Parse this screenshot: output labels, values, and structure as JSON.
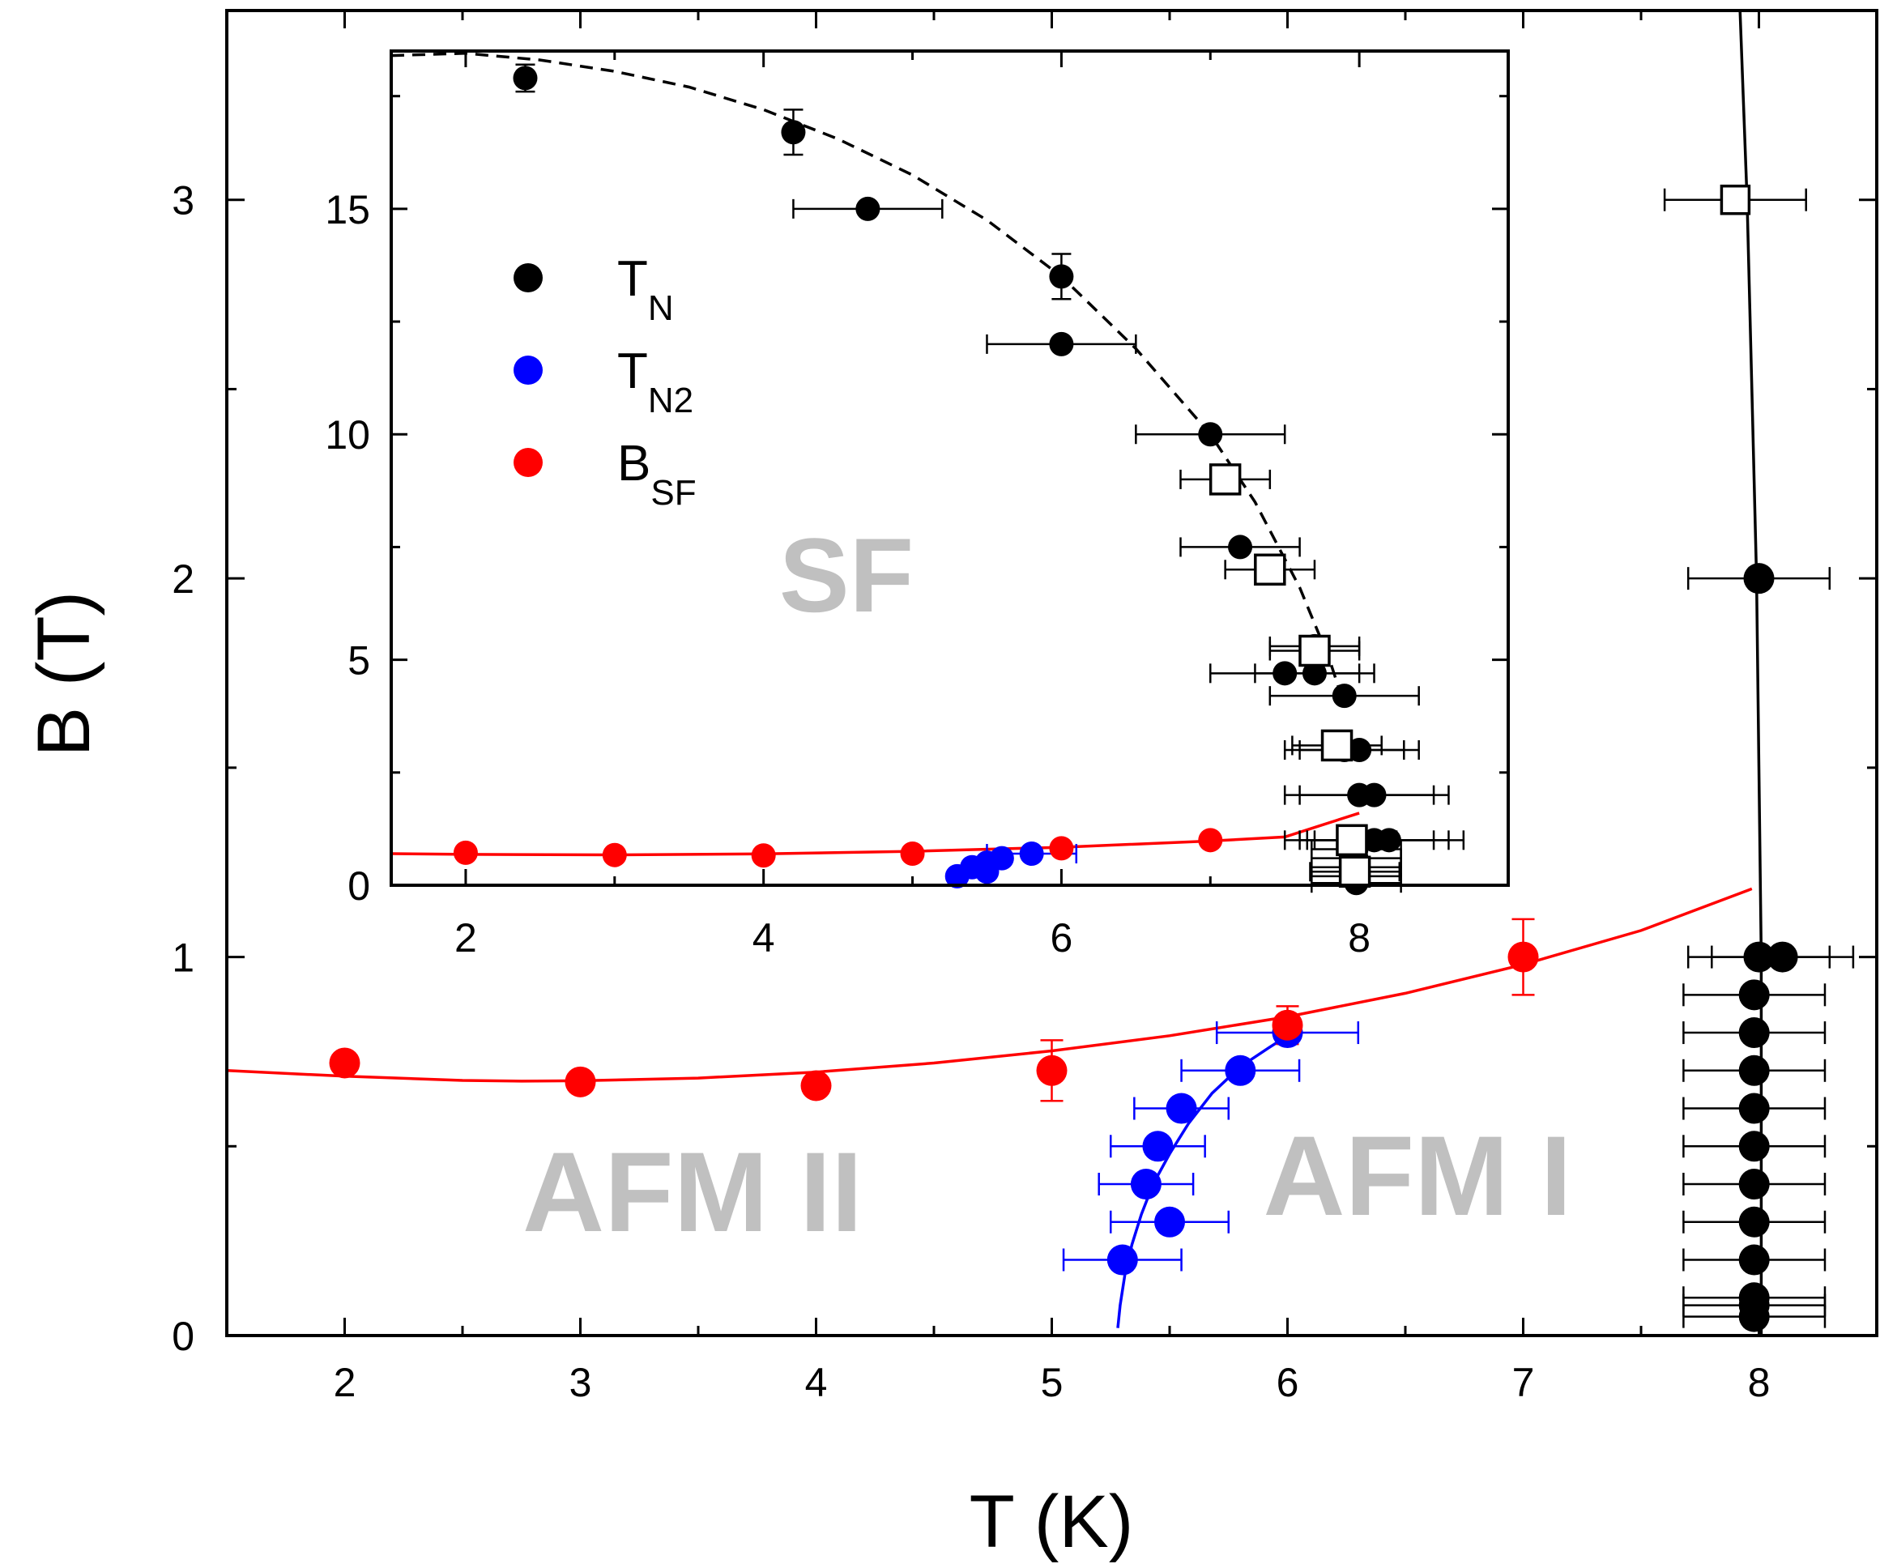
{
  "chart_data": [
    {
      "type": "scatter",
      "panel": "main",
      "xlabel": "T (K)",
      "ylabel": "B (T)",
      "xlim": [
        1.5,
        8.5
      ],
      "ylim": [
        0,
        3.5
      ],
      "xticks": [
        2,
        3,
        4,
        5,
        6,
        7,
        8
      ],
      "yticks": [
        0,
        1,
        2,
        3
      ],
      "region_labels": [
        "AFM II",
        "AFM I"
      ],
      "series": [
        {
          "id": "TN",
          "color": "#000000",
          "marker": "filled-circle",
          "points": [
            {
              "x": 8.0,
              "y": 2.0,
              "xerr": 0.3
            },
            {
              "x": 8.0,
              "y": 1.0,
              "xerr": 0.3
            },
            {
              "x": 8.1,
              "y": 1.0,
              "xerr": 0.3
            },
            {
              "x": 7.98,
              "y": 0.9,
              "xerr": 0.3
            },
            {
              "x": 7.98,
              "y": 0.8,
              "xerr": 0.3
            },
            {
              "x": 7.98,
              "y": 0.7,
              "xerr": 0.3
            },
            {
              "x": 7.98,
              "y": 0.6,
              "xerr": 0.3
            },
            {
              "x": 7.98,
              "y": 0.5,
              "xerr": 0.3
            },
            {
              "x": 7.98,
              "y": 0.4,
              "xerr": 0.3
            },
            {
              "x": 7.98,
              "y": 0.3,
              "xerr": 0.3
            },
            {
              "x": 7.98,
              "y": 0.2,
              "xerr": 0.3
            },
            {
              "x": 7.98,
              "y": 0.1,
              "xerr": 0.3
            },
            {
              "x": 7.98,
              "y": 0.08,
              "xerr": 0.3
            },
            {
              "x": 7.98,
              "y": 0.05,
              "xerr": 0.3
            }
          ]
        },
        {
          "id": "TN_open",
          "color": "#000000",
          "marker": "open-square",
          "points": [
            {
              "x": 7.9,
              "y": 3.0,
              "xerr": 0.3
            }
          ]
        },
        {
          "id": "TN2",
          "color": "#0000ff",
          "marker": "filled-circle",
          "points": [
            {
              "x": 5.3,
              "y": 0.2,
              "xerr": 0.25
            },
            {
              "x": 5.5,
              "y": 0.3,
              "xerr": 0.25
            },
            {
              "x": 5.4,
              "y": 0.4,
              "xerr": 0.2
            },
            {
              "x": 5.45,
              "y": 0.5,
              "xerr": 0.2
            },
            {
              "x": 5.55,
              "y": 0.6,
              "xerr": 0.2
            },
            {
              "x": 5.8,
              "y": 0.7,
              "xerr": 0.25
            },
            {
              "x": 6.0,
              "y": 0.8,
              "xerr": 0.3
            }
          ]
        },
        {
          "id": "BSF",
          "color": "#ff0000",
          "marker": "filled-circle",
          "points": [
            {
              "x": 2.0,
              "y": 0.72,
              "yerr": 0.0
            },
            {
              "x": 3.0,
              "y": 0.67,
              "yerr": 0.0
            },
            {
              "x": 4.0,
              "y": 0.66,
              "yerr": 0.0
            },
            {
              "x": 5.0,
              "y": 0.7,
              "yerr": 0.08
            },
            {
              "x": 6.0,
              "y": 0.82,
              "yerr": 0.05
            },
            {
              "x": 7.0,
              "y": 1.0,
              "yerr": 0.1
            }
          ]
        }
      ],
      "fits": [
        {
          "id": "BSF_fit",
          "color": "#ff0000",
          "style": "solid",
          "points": [
            [
              1.5,
              0.7
            ],
            [
              2.0,
              0.685
            ],
            [
              2.5,
              0.674
            ],
            [
              2.75,
              0.672
            ],
            [
              3.0,
              0.673
            ],
            [
              3.5,
              0.68
            ],
            [
              4.0,
              0.696
            ],
            [
              4.5,
              0.72
            ],
            [
              5.0,
              0.752
            ],
            [
              5.5,
              0.792
            ],
            [
              6.0,
              0.842
            ],
            [
              6.5,
              0.904
            ],
            [
              7.0,
              0.98
            ],
            [
              7.5,
              1.07
            ],
            [
              7.97,
              1.18
            ]
          ]
        },
        {
          "id": "TN2_fit",
          "color": "#0000ff",
          "style": "solid",
          "points": [
            [
              5.28,
              0.02
            ],
            [
              5.29,
              0.08
            ],
            [
              5.31,
              0.16
            ],
            [
              5.34,
              0.24
            ],
            [
              5.38,
              0.32
            ],
            [
              5.43,
              0.4
            ],
            [
              5.5,
              0.48
            ],
            [
              5.58,
              0.56
            ],
            [
              5.68,
              0.64
            ],
            [
              5.8,
              0.71
            ],
            [
              5.92,
              0.76
            ],
            [
              6.02,
              0.8
            ]
          ]
        },
        {
          "id": "TN_fit",
          "color": "#000000",
          "style": "solid",
          "points": [
            [
              7.92,
              3.5
            ],
            [
              7.95,
              3.0
            ],
            [
              7.97,
              2.5
            ],
            [
              7.99,
              2.0
            ],
            [
              8.0,
              1.5
            ],
            [
              8.01,
              1.0
            ],
            [
              8.01,
              0.5
            ],
            [
              8.01,
              0.0
            ]
          ]
        }
      ]
    },
    {
      "type": "scatter",
      "panel": "inset",
      "xlim": [
        1.5,
        9.0
      ],
      "ylim": [
        0,
        18.5
      ],
      "xticks": [
        2,
        4,
        6,
        8
      ],
      "yticks": [
        0,
        5,
        10,
        15
      ],
      "region_labels": [
        "SF"
      ],
      "legend": {
        "placement": "top-left",
        "entries": [
          {
            "symbol_color": "#000000",
            "main": "T",
            "sub": "N"
          },
          {
            "symbol_color": "#0000ff",
            "main": "T",
            "sub": "N2"
          },
          {
            "symbol_color": "#ff0000",
            "main": "B",
            "sub": "SF"
          }
        ]
      },
      "series": [
        {
          "id": "TN",
          "color": "#000000",
          "marker": "filled-circle",
          "points": [
            {
              "x": 2.4,
              "y": 17.9,
              "yerr": 0.3
            },
            {
              "x": 4.2,
              "y": 16.7,
              "yerr": 0.5
            },
            {
              "x": 4.7,
              "y": 15.0,
              "xerr": 0.5
            },
            {
              "x": 6.0,
              "y": 13.5,
              "yerr": 0.5
            },
            {
              "x": 6.0,
              "y": 12.0,
              "xerr": 0.5
            },
            {
              "x": 7.0,
              "y": 10.0,
              "xerr": 0.5
            },
            {
              "x": 7.2,
              "y": 7.5,
              "xerr": 0.4
            },
            {
              "x": 7.5,
              "y": 4.7,
              "xerr": 0.5
            },
            {
              "x": 7.7,
              "y": 4.7,
              "xerr": 0.4
            },
            {
              "x": 7.7,
              "y": 5.3,
              "xerr": 0.3
            },
            {
              "x": 7.9,
              "y": 4.2,
              "xerr": 0.5
            },
            {
              "x": 7.9,
              "y": 3.0,
              "xerr": 0.4
            },
            {
              "x": 8.0,
              "y": 3.0,
              "xerr": 0.4
            },
            {
              "x": 8.0,
              "y": 2.0,
              "xerr": 0.5
            },
            {
              "x": 8.1,
              "y": 2.0,
              "xerr": 0.5
            },
            {
              "x": 8.0,
              "y": 1.0,
              "xerr": 0.5
            },
            {
              "x": 8.1,
              "y": 1.0,
              "xerr": 0.5
            },
            {
              "x": 8.2,
              "y": 1.0,
              "xerr": 0.5
            },
            {
              "x": 7.98,
              "y": 0.8,
              "xerr": 0.3
            },
            {
              "x": 7.98,
              "y": 0.6,
              "xerr": 0.3
            },
            {
              "x": 7.98,
              "y": 0.4,
              "xerr": 0.3
            },
            {
              "x": 7.98,
              "y": 0.2,
              "xerr": 0.3
            },
            {
              "x": 7.98,
              "y": 0.05,
              "xerr": 0.3
            }
          ]
        },
        {
          "id": "TN_open",
          "color": "#000000",
          "marker": "open-square",
          "points": [
            {
              "x": 7.1,
              "y": 9.0,
              "xerr": 0.3
            },
            {
              "x": 7.4,
              "y": 7.0,
              "xerr": 0.3
            },
            {
              "x": 7.7,
              "y": 5.2,
              "xerr": 0.3
            },
            {
              "x": 7.85,
              "y": 3.1,
              "xerr": 0.3
            },
            {
              "x": 7.95,
              "y": 1.0,
              "xerr": 0.3
            },
            {
              "x": 7.97,
              "y": 0.3,
              "xerr": 0.3
            }
          ]
        },
        {
          "id": "TN2",
          "color": "#0000ff",
          "marker": "filled-circle",
          "points": [
            {
              "x": 5.3,
              "y": 0.2
            },
            {
              "x": 5.4,
              "y": 0.4
            },
            {
              "x": 5.5,
              "y": 0.5
            },
            {
              "x": 5.5,
              "y": 0.3
            },
            {
              "x": 5.6,
              "y": 0.6
            },
            {
              "x": 5.8,
              "y": 0.7,
              "xerr": 0.3
            }
          ]
        },
        {
          "id": "BSF",
          "color": "#ff0000",
          "marker": "filled-circle",
          "points": [
            {
              "x": 2.0,
              "y": 0.72
            },
            {
              "x": 3.0,
              "y": 0.67
            },
            {
              "x": 4.0,
              "y": 0.66
            },
            {
              "x": 5.0,
              "y": 0.7
            },
            {
              "x": 6.0,
              "y": 0.82
            },
            {
              "x": 7.0,
              "y": 1.0
            }
          ]
        }
      ],
      "fits": [
        {
          "id": "TN_fit_inset",
          "color": "#000000",
          "style": "dashed",
          "points": [
            [
              1.5,
              18.4
            ],
            [
              2.0,
              18.45
            ],
            [
              2.5,
              18.3
            ],
            [
              3.0,
              18.05
            ],
            [
              3.5,
              17.7
            ],
            [
              4.0,
              17.2
            ],
            [
              4.5,
              16.55
            ],
            [
              5.0,
              15.75
            ],
            [
              5.5,
              14.75
            ],
            [
              6.0,
              13.5
            ],
            [
              6.5,
              11.9
            ],
            [
              7.0,
              10.0
            ],
            [
              7.3,
              8.5
            ],
            [
              7.6,
              6.6
            ],
            [
              7.8,
              5.0
            ],
            [
              7.9,
              4.0
            ]
          ]
        },
        {
          "id": "BSF_fit_inset",
          "color": "#ff0000",
          "style": "solid",
          "points": [
            [
              1.5,
              0.7
            ],
            [
              2.0,
              0.685
            ],
            [
              3.0,
              0.673
            ],
            [
              4.0,
              0.696
            ],
            [
              5.0,
              0.752
            ],
            [
              6.0,
              0.842
            ],
            [
              7.0,
              0.98
            ],
            [
              7.5,
              1.07
            ],
            [
              8.0,
              1.6
            ]
          ]
        }
      ]
    }
  ]
}
